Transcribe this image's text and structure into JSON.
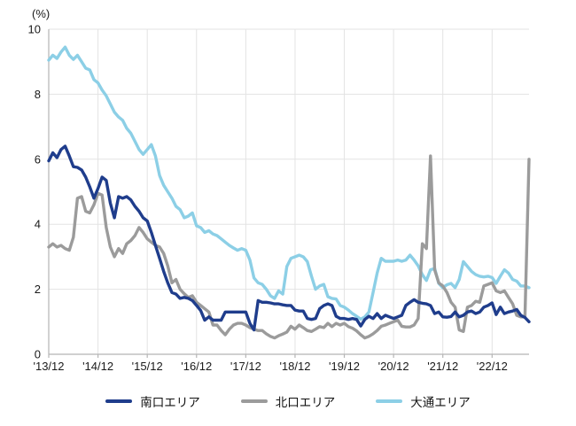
{
  "chart_data": {
    "type": "line",
    "title": "",
    "unit": "(%)",
    "x_start": "2013-12",
    "x_frequency": "monthly",
    "x_tick_labels": [
      "'13/12",
      "'14/12",
      "'15/12",
      "'16/12",
      "'17/12",
      "'18/12",
      "'19/12",
      "'20/12",
      "'21/12",
      "'22/12"
    ],
    "x_ticks_every_months": 12,
    "y_ticks": [
      0,
      2,
      4,
      6,
      8,
      10
    ],
    "ylim": [
      0,
      10
    ],
    "grid": true,
    "legend_position": "bottom",
    "colors": {
      "grid": "#e3e3e3",
      "axis": "#b5b5b5",
      "text": "#1a1a1a"
    },
    "series": [
      {
        "name": "南口エリア",
        "key": "minamiguchi",
        "color": "#1f3d8c",
        "values": [
          5.95,
          6.2,
          6.05,
          6.3,
          6.4,
          6.1,
          5.77,
          5.75,
          5.67,
          5.45,
          5.15,
          4.8,
          5.1,
          5.45,
          5.35,
          4.65,
          4.2,
          4.85,
          4.8,
          4.85,
          4.75,
          4.55,
          4.4,
          4.2,
          4.1,
          3.75,
          3.35,
          2.95,
          2.55,
          2.2,
          1.9,
          1.85,
          1.72,
          1.75,
          1.72,
          1.65,
          1.5,
          1.35,
          1.05,
          1.15,
          1.05,
          1.05,
          1.05,
          1.3,
          1.3,
          1.3,
          1.3,
          1.3,
          1.3,
          0.95,
          0.75,
          1.65,
          1.6,
          1.6,
          1.58,
          1.55,
          1.55,
          1.52,
          1.5,
          1.5,
          1.36,
          1.33,
          1.33,
          1.1,
          1.07,
          1.1,
          1.4,
          1.5,
          1.55,
          1.5,
          1.17,
          1.1,
          1.1,
          1.07,
          1.1,
          1.07,
          0.87,
          1.07,
          1.17,
          1.1,
          1.25,
          1.1,
          1.2,
          1.15,
          1.1,
          1.15,
          1.2,
          1.5,
          1.6,
          1.68,
          1.6,
          1.57,
          1.55,
          1.5,
          1.25,
          1.3,
          1.15,
          1.14,
          1.16,
          1.3,
          1.15,
          1.2,
          1.3,
          1.33,
          1.25,
          1.3,
          1.45,
          1.5,
          1.58,
          1.22,
          1.45,
          1.25,
          1.3,
          1.33,
          1.38,
          1.2,
          1.13,
          1.0
        ]
      },
      {
        "name": "北口エリア",
        "key": "kitaguchi",
        "color": "#9b9b9b",
        "values": [
          3.3,
          3.4,
          3.3,
          3.35,
          3.25,
          3.2,
          3.6,
          4.8,
          4.85,
          4.4,
          4.35,
          4.6,
          4.95,
          4.9,
          3.9,
          3.3,
          3.0,
          3.25,
          3.1,
          3.4,
          3.5,
          3.65,
          3.9,
          3.75,
          3.55,
          3.45,
          3.35,
          3.3,
          3.1,
          2.72,
          2.2,
          2.3,
          2.0,
          1.86,
          1.75,
          1.8,
          1.6,
          1.5,
          1.4,
          1.3,
          0.9,
          0.9,
          0.73,
          0.6,
          0.77,
          0.9,
          0.95,
          0.95,
          0.9,
          0.82,
          0.77,
          0.73,
          0.73,
          0.63,
          0.55,
          0.5,
          0.57,
          0.62,
          0.68,
          0.86,
          0.77,
          0.9,
          0.82,
          0.73,
          0.7,
          0.77,
          0.85,
          0.82,
          0.95,
          0.85,
          0.95,
          0.9,
          0.95,
          0.85,
          0.8,
          0.72,
          0.6,
          0.5,
          0.55,
          0.63,
          0.73,
          0.86,
          0.9,
          0.95,
          1.0,
          1.05,
          0.86,
          0.84,
          0.84,
          0.9,
          1.1,
          3.4,
          3.25,
          6.1,
          2.6,
          2.2,
          2.1,
          1.9,
          1.6,
          1.45,
          0.75,
          0.7,
          1.45,
          1.5,
          1.63,
          1.6,
          2.1,
          2.15,
          2.2,
          1.95,
          1.9,
          1.95,
          1.75,
          1.55,
          1.2,
          1.15,
          1.15,
          6.0
        ]
      },
      {
        "name": "大通エリア",
        "key": "odori",
        "color": "#8ccfe6",
        "values": [
          9.05,
          9.2,
          9.1,
          9.3,
          9.45,
          9.2,
          9.07,
          9.2,
          9.0,
          8.8,
          8.75,
          8.45,
          8.35,
          8.13,
          7.95,
          7.7,
          7.45,
          7.3,
          7.2,
          6.95,
          6.8,
          6.55,
          6.3,
          6.15,
          6.3,
          6.45,
          6.1,
          5.5,
          5.2,
          5.0,
          4.8,
          4.55,
          4.45,
          4.2,
          4.25,
          4.35,
          3.95,
          3.9,
          3.75,
          3.8,
          3.7,
          3.65,
          3.55,
          3.45,
          3.35,
          3.27,
          3.2,
          3.25,
          3.2,
          2.9,
          2.35,
          2.2,
          2.15,
          2.0,
          1.8,
          1.72,
          1.95,
          1.85,
          2.7,
          2.95,
          3.0,
          3.05,
          3.0,
          2.85,
          2.4,
          2.0,
          2.1,
          2.15,
          1.77,
          1.72,
          1.7,
          1.5,
          1.45,
          1.36,
          1.25,
          1.17,
          1.08,
          1.15,
          1.3,
          1.9,
          2.5,
          2.95,
          2.86,
          2.86,
          2.86,
          2.9,
          2.86,
          2.9,
          3.05,
          2.9,
          2.72,
          2.45,
          2.27,
          2.6,
          2.64,
          2.18,
          2.05,
          2.14,
          2.18,
          2.05,
          2.3,
          2.85,
          2.7,
          2.55,
          2.45,
          2.4,
          2.38,
          2.4,
          2.36,
          2.18,
          2.4,
          2.6,
          2.5,
          2.3,
          2.25,
          2.1,
          2.1,
          2.05
        ]
      }
    ]
  }
}
